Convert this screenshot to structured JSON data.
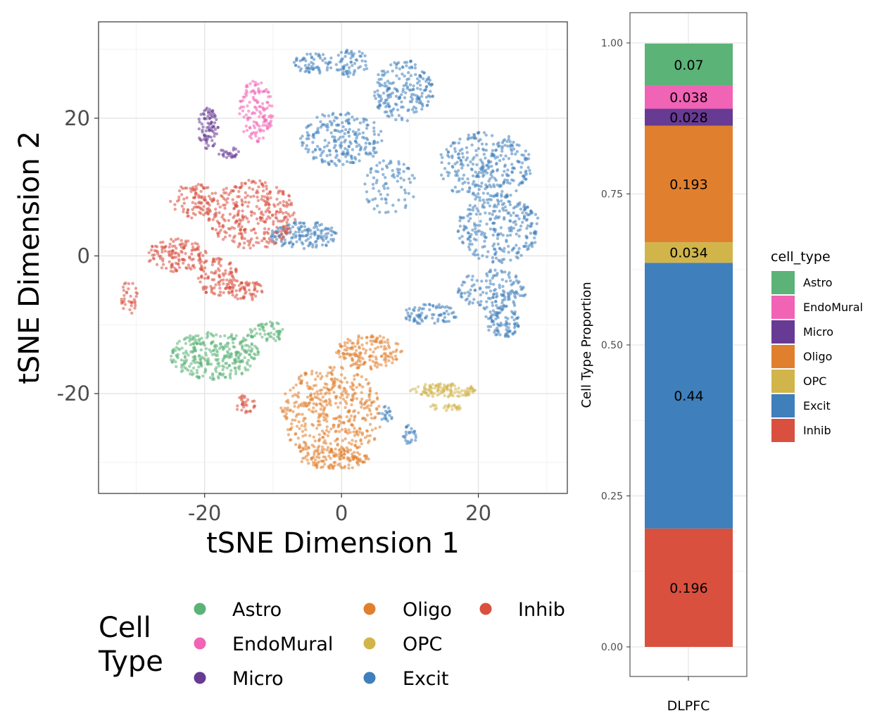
{
  "colors": {
    "Astro": "#5BB377",
    "EndoMural": "#F063B5",
    "Micro": "#673A93",
    "Oligo": "#E0802E",
    "OPC": "#D1B54A",
    "Excit": "#3F7FBB",
    "Inhib": "#D9503F",
    "grid": "#e6e6e6",
    "axis": "#333333"
  },
  "chart_data": [
    {
      "type": "scatter",
      "xlabel": "tSNE Dimension 1",
      "ylabel": "tSNE Dimension 2",
      "xlim": [
        -35.5,
        33
      ],
      "ylim": [
        -34.5,
        34
      ],
      "xticks": [
        -20,
        0,
        20
      ],
      "yticks": [
        -20,
        0,
        20
      ],
      "grid": true,
      "legend": {
        "title": [
          "Cell",
          "Type"
        ],
        "placement": "bottom",
        "entries": [
          "Astro",
          "EndoMural",
          "Micro",
          "Oligo",
          "OPC",
          "Excit",
          "Inhib"
        ]
      },
      "clusters": [
        {
          "label": "Excit",
          "cx": -4,
          "cy": 28,
          "rx": 3,
          "ry": 1.5,
          "n": 60
        },
        {
          "label": "Excit",
          "cx": 1.5,
          "cy": 28,
          "rx": 2.5,
          "ry": 2,
          "n": 60
        },
        {
          "label": "Excit",
          "cx": 0,
          "cy": 17,
          "rx": 6,
          "ry": 4,
          "n": 220
        },
        {
          "label": "Excit",
          "cx": 9,
          "cy": 24,
          "rx": 4.5,
          "ry": 4.5,
          "n": 200
        },
        {
          "label": "Excit",
          "cx": 21,
          "cy": 13,
          "rx": 7,
          "ry": 5,
          "n": 300
        },
        {
          "label": "Excit",
          "cx": 23,
          "cy": 4,
          "rx": 6,
          "ry": 5,
          "n": 260
        },
        {
          "label": "Excit",
          "cx": 22,
          "cy": -5,
          "rx": 5,
          "ry": 3,
          "n": 140
        },
        {
          "label": "Excit",
          "cx": 23.5,
          "cy": -9.5,
          "rx": 2.5,
          "ry": 2.5,
          "n": 90
        },
        {
          "label": "Excit",
          "cx": 13,
          "cy": -8.5,
          "rx": 4,
          "ry": 1.5,
          "n": 80
        },
        {
          "label": "Excit",
          "cx": -5.5,
          "cy": 3,
          "rx": 5,
          "ry": 2,
          "n": 150
        },
        {
          "label": "Excit",
          "cx": 7,
          "cy": 10,
          "rx": 4,
          "ry": 4,
          "n": 80
        },
        {
          "label": "Excit",
          "cx": 10,
          "cy": -26,
          "rx": 1,
          "ry": 1.5,
          "n": 25
        },
        {
          "label": "Excit",
          "cx": 6.5,
          "cy": -23,
          "rx": 1,
          "ry": 1.2,
          "n": 20
        },
        {
          "label": "Inhib",
          "cx": -13,
          "cy": 6,
          "rx": 6.5,
          "ry": 5,
          "n": 320
        },
        {
          "label": "Inhib",
          "cx": -21.5,
          "cy": 8,
          "rx": 3.5,
          "ry": 2.5,
          "n": 100
        },
        {
          "label": "Inhib",
          "cx": -24,
          "cy": 0,
          "rx": 4.5,
          "ry": 2.5,
          "n": 140
        },
        {
          "label": "Inhib",
          "cx": -18,
          "cy": -3,
          "rx": 3,
          "ry": 3,
          "n": 110
        },
        {
          "label": "Inhib",
          "cx": -14,
          "cy": -5,
          "rx": 2.5,
          "ry": 1.5,
          "n": 60
        },
        {
          "label": "Inhib",
          "cx": -31,
          "cy": -6,
          "rx": 1.2,
          "ry": 2.5,
          "n": 35
        },
        {
          "label": "Inhib",
          "cx": -14,
          "cy": -21.5,
          "rx": 1.5,
          "ry": 1.5,
          "n": 30
        },
        {
          "label": "Astro",
          "cx": -18.5,
          "cy": -14.5,
          "rx": 6.5,
          "ry": 3.5,
          "n": 320
        },
        {
          "label": "Astro",
          "cx": -11,
          "cy": -11,
          "rx": 3,
          "ry": 1.5,
          "n": 60
        },
        {
          "label": "EndoMural",
          "cx": -12.5,
          "cy": 21,
          "rx": 2.5,
          "ry": 4.5,
          "n": 130
        },
        {
          "label": "Micro",
          "cx": -19.5,
          "cy": 18.5,
          "rx": 1.5,
          "ry": 3,
          "n": 80
        },
        {
          "label": "Micro",
          "cx": -16.5,
          "cy": 15,
          "rx": 1.5,
          "ry": 0.8,
          "n": 25
        },
        {
          "label": "Oligo",
          "cx": -1.5,
          "cy": -23,
          "rx": 7.5,
          "ry": 7,
          "n": 460
        },
        {
          "label": "Oligo",
          "cx": 4,
          "cy": -14,
          "rx": 5,
          "ry": 2.5,
          "n": 160
        },
        {
          "label": "Oligo",
          "cx": -1,
          "cy": -29.5,
          "rx": 5,
          "ry": 1.5,
          "n": 110
        },
        {
          "label": "OPC",
          "cx": 15,
          "cy": -19.5,
          "rx": 5,
          "ry": 1,
          "n": 110
        },
        {
          "label": "OPC",
          "cx": 15,
          "cy": -22,
          "rx": 2.5,
          "ry": 0.6,
          "n": 25
        }
      ]
    },
    {
      "type": "bar",
      "stacked": true,
      "categories": [
        "DLPFC"
      ],
      "xlabel": "",
      "ylabel": "Cell Type Proportion",
      "ylim": [
        0,
        1
      ],
      "yticks": [
        "0.00",
        "0.25",
        "0.50",
        "0.75",
        "1.00"
      ],
      "grid": true,
      "legend": {
        "title": "cell_type",
        "placement": "right",
        "entries": [
          "Astro",
          "EndoMural",
          "Micro",
          "Oligo",
          "OPC",
          "Excit",
          "Inhib"
        ]
      },
      "series": [
        {
          "name": "Inhib",
          "values": [
            0.196
          ],
          "label": "0.196"
        },
        {
          "name": "Excit",
          "values": [
            0.44
          ],
          "label": "0.44"
        },
        {
          "name": "OPC",
          "values": [
            0.034
          ],
          "label": "0.034"
        },
        {
          "name": "Oligo",
          "values": [
            0.193
          ],
          "label": "0.193"
        },
        {
          "name": "Micro",
          "values": [
            0.028
          ],
          "label": "0.028"
        },
        {
          "name": "EndoMural",
          "values": [
            0.038
          ],
          "label": "0.038"
        },
        {
          "name": "Astro",
          "values": [
            0.07
          ],
          "label": "0.07"
        }
      ]
    }
  ]
}
